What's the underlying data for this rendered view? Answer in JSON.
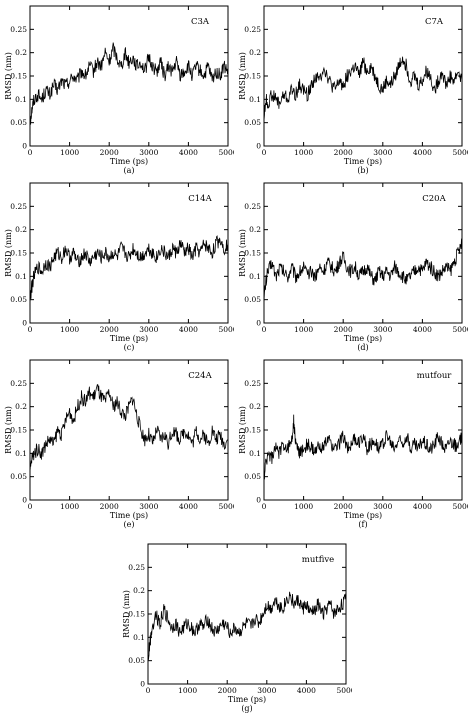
{
  "chart_data": [
    {
      "type": "line",
      "title": "C3A",
      "xlabel": "Time (ps)",
      "ylabel": "RMSD (nm)",
      "caption": "(a)",
      "xlim": [
        0,
        5000
      ],
      "ylim": [
        0,
        0.3
      ],
      "xticks": [
        0,
        1000,
        2000,
        3000,
        4000,
        5000
      ],
      "yticks": [
        0,
        0.05,
        0.1,
        0.15,
        0.2,
        0.25
      ],
      "yticklabels": [
        "0",
        "0.05",
        "0.1",
        "0.15",
        "0.2",
        "0.25"
      ],
      "grid": false,
      "color": "#000000",
      "series": [
        {
          "x": [
            0,
            50,
            100,
            200,
            300,
            400,
            500,
            600,
            700,
            800,
            900,
            1000,
            1100,
            1200,
            1300,
            1400,
            1500,
            1600,
            1700,
            1800,
            1900,
            2000,
            2100,
            2200,
            2300,
            2400,
            2500,
            2600,
            2700,
            2800,
            2900,
            3000,
            3100,
            3200,
            3300,
            3400,
            3500,
            3600,
            3700,
            3800,
            3900,
            4000,
            4100,
            4200,
            4300,
            4400,
            4500,
            4600,
            4700,
            4800,
            4900,
            5000
          ],
          "y": [
            0.05,
            0.08,
            0.1,
            0.11,
            0.1,
            0.12,
            0.11,
            0.13,
            0.12,
            0.14,
            0.13,
            0.14,
            0.15,
            0.14,
            0.16,
            0.15,
            0.17,
            0.16,
            0.18,
            0.17,
            0.2,
            0.18,
            0.21,
            0.19,
            0.17,
            0.2,
            0.18,
            0.19,
            0.17,
            0.18,
            0.16,
            0.19,
            0.17,
            0.16,
            0.18,
            0.15,
            0.17,
            0.16,
            0.18,
            0.15,
            0.16,
            0.17,
            0.15,
            0.17,
            0.16,
            0.15,
            0.17,
            0.14,
            0.16,
            0.15,
            0.17,
            0.16
          ]
        }
      ]
    },
    {
      "type": "line",
      "title": "C7A",
      "xlabel": "Time (ps)",
      "ylabel": "RMSD (nm)",
      "caption": "(b)",
      "xlim": [
        0,
        5000
      ],
      "ylim": [
        0,
        0.3
      ],
      "xticks": [
        0,
        1000,
        2000,
        3000,
        4000,
        5000
      ],
      "yticks": [
        0,
        0.05,
        0.1,
        0.15,
        0.2,
        0.25
      ],
      "yticklabels": [
        "0",
        "0.05",
        "0.1",
        "0.15",
        "0.2",
        "0.25"
      ],
      "grid": false,
      "color": "#000000",
      "series": [
        {
          "x": [
            0,
            50,
            100,
            200,
            300,
            400,
            500,
            600,
            700,
            800,
            900,
            1000,
            1100,
            1200,
            1300,
            1400,
            1500,
            1600,
            1700,
            1800,
            1900,
            2000,
            2100,
            2200,
            2300,
            2400,
            2500,
            2600,
            2700,
            2800,
            2900,
            3000,
            3100,
            3200,
            3300,
            3400,
            3500,
            3600,
            3700,
            3800,
            3900,
            4000,
            4100,
            4200,
            4300,
            4400,
            4500,
            4600,
            4700,
            4800,
            4900,
            5000
          ],
          "y": [
            0.06,
            0.1,
            0.09,
            0.11,
            0.1,
            0.09,
            0.11,
            0.1,
            0.12,
            0.11,
            0.13,
            0.12,
            0.11,
            0.13,
            0.15,
            0.14,
            0.17,
            0.15,
            0.13,
            0.12,
            0.14,
            0.13,
            0.15,
            0.16,
            0.17,
            0.15,
            0.18,
            0.16,
            0.17,
            0.15,
            0.13,
            0.12,
            0.14,
            0.13,
            0.15,
            0.17,
            0.19,
            0.17,
            0.14,
            0.15,
            0.13,
            0.14,
            0.16,
            0.15,
            0.12,
            0.14,
            0.16,
            0.13,
            0.15,
            0.14,
            0.16,
            0.14
          ]
        }
      ]
    },
    {
      "type": "line",
      "title": "C14A",
      "xlabel": "Time (ps)",
      "ylabel": "RMSD (nm)",
      "caption": "(c)",
      "xlim": [
        0,
        5000
      ],
      "ylim": [
        0,
        0.3
      ],
      "xticks": [
        0,
        1000,
        2000,
        3000,
        4000,
        5000
      ],
      "yticks": [
        0,
        0.05,
        0.1,
        0.15,
        0.2,
        0.25
      ],
      "yticklabels": [
        "0",
        "0.05",
        "0.1",
        "0.15",
        "0.2",
        "0.25"
      ],
      "grid": false,
      "color": "#000000",
      "series": [
        {
          "x": [
            0,
            50,
            100,
            200,
            300,
            400,
            500,
            600,
            700,
            800,
            900,
            1000,
            1100,
            1200,
            1300,
            1400,
            1500,
            1600,
            1700,
            1800,
            1900,
            2000,
            2100,
            2200,
            2300,
            2400,
            2500,
            2600,
            2700,
            2800,
            2900,
            3000,
            3100,
            3200,
            3300,
            3400,
            3500,
            3600,
            3700,
            3800,
            3900,
            4000,
            4100,
            4200,
            4300,
            4400,
            4500,
            4600,
            4700,
            4800,
            4900,
            5000
          ],
          "y": [
            0.05,
            0.08,
            0.1,
            0.12,
            0.11,
            0.13,
            0.12,
            0.14,
            0.15,
            0.14,
            0.16,
            0.14,
            0.15,
            0.13,
            0.14,
            0.15,
            0.13,
            0.14,
            0.15,
            0.14,
            0.15,
            0.14,
            0.15,
            0.14,
            0.16,
            0.15,
            0.14,
            0.16,
            0.15,
            0.14,
            0.15,
            0.16,
            0.15,
            0.14,
            0.16,
            0.15,
            0.14,
            0.16,
            0.15,
            0.17,
            0.15,
            0.16,
            0.14,
            0.16,
            0.15,
            0.17,
            0.16,
            0.15,
            0.17,
            0.18,
            0.16,
            0.17
          ]
        }
      ]
    },
    {
      "type": "line",
      "title": "C20A",
      "xlabel": "Time (ps)",
      "ylabel": "RMSD (nm)",
      "caption": "(d)",
      "xlim": [
        0,
        5000
      ],
      "ylim": [
        0,
        0.3
      ],
      "xticks": [
        0,
        1000,
        2000,
        3000,
        4000,
        5000
      ],
      "yticks": [
        0,
        0.05,
        0.1,
        0.15,
        0.2,
        0.25
      ],
      "yticklabels": [
        "0",
        "0.05",
        "0.1",
        "0.15",
        "0.2",
        "0.25"
      ],
      "grid": false,
      "color": "#000000",
      "series": [
        {
          "x": [
            0,
            50,
            100,
            200,
            300,
            400,
            500,
            600,
            700,
            800,
            900,
            1000,
            1100,
            1200,
            1300,
            1400,
            1500,
            1600,
            1700,
            1800,
            1900,
            2000,
            2100,
            2200,
            2300,
            2400,
            2500,
            2600,
            2700,
            2800,
            2900,
            3000,
            3100,
            3200,
            3300,
            3400,
            3500,
            3600,
            3700,
            3800,
            3900,
            4000,
            4100,
            4200,
            4300,
            4400,
            4500,
            4600,
            4700,
            4800,
            4900,
            5000
          ],
          "y": [
            0.05,
            0.09,
            0.11,
            0.13,
            0.1,
            0.12,
            0.11,
            0.1,
            0.12,
            0.1,
            0.11,
            0.12,
            0.1,
            0.11,
            0.1,
            0.12,
            0.11,
            0.13,
            0.12,
            0.11,
            0.13,
            0.14,
            0.12,
            0.11,
            0.12,
            0.1,
            0.11,
            0.12,
            0.1,
            0.09,
            0.11,
            0.1,
            0.11,
            0.1,
            0.12,
            0.11,
            0.1,
            0.09,
            0.1,
            0.11,
            0.12,
            0.11,
            0.13,
            0.12,
            0.11,
            0.1,
            0.11,
            0.12,
            0.11,
            0.13,
            0.15,
            0.17
          ]
        }
      ]
    },
    {
      "type": "line",
      "title": "C24A",
      "xlabel": "Time (ps)",
      "ylabel": "RMSD (nm)",
      "caption": "(e)",
      "xlim": [
        0,
        5000
      ],
      "ylim": [
        0,
        0.3
      ],
      "xticks": [
        0,
        1000,
        2000,
        3000,
        4000,
        5000
      ],
      "yticks": [
        0,
        0.05,
        0.1,
        0.15,
        0.2,
        0.25
      ],
      "yticklabels": [
        "0",
        "0.05",
        "0.1",
        "0.15",
        "0.2",
        "0.25"
      ],
      "grid": false,
      "color": "#000000",
      "series": [
        {
          "x": [
            0,
            50,
            100,
            200,
            300,
            400,
            500,
            600,
            700,
            800,
            900,
            1000,
            1100,
            1200,
            1300,
            1400,
            1500,
            1600,
            1700,
            1800,
            1900,
            2000,
            2100,
            2200,
            2300,
            2400,
            2500,
            2600,
            2700,
            2800,
            2900,
            3000,
            3100,
            3200,
            3300,
            3400,
            3500,
            3600,
            3700,
            3800,
            3900,
            4000,
            4100,
            4200,
            4300,
            4400,
            4500,
            4600,
            4700,
            4800,
            4900,
            5000
          ],
          "y": [
            0.06,
            0.09,
            0.1,
            0.11,
            0.1,
            0.12,
            0.13,
            0.12,
            0.15,
            0.14,
            0.17,
            0.19,
            0.17,
            0.2,
            0.22,
            0.21,
            0.23,
            0.22,
            0.24,
            0.22,
            0.21,
            0.23,
            0.2,
            0.21,
            0.19,
            0.18,
            0.2,
            0.22,
            0.18,
            0.15,
            0.13,
            0.14,
            0.12,
            0.15,
            0.13,
            0.14,
            0.12,
            0.15,
            0.14,
            0.13,
            0.15,
            0.14,
            0.12,
            0.15,
            0.13,
            0.14,
            0.12,
            0.15,
            0.13,
            0.14,
            0.12,
            0.13
          ]
        }
      ]
    },
    {
      "type": "line",
      "title": "mutfour",
      "xlabel": "Time (ps)",
      "ylabel": "RMSD (nm)",
      "caption": "(f)",
      "xlim": [
        0,
        5000
      ],
      "ylim": [
        0,
        0.3
      ],
      "xticks": [
        0,
        1000,
        2000,
        3000,
        4000,
        5000
      ],
      "yticks": [
        0,
        0.05,
        0.1,
        0.15,
        0.2,
        0.25
      ],
      "yticklabels": [
        "0",
        "0.05",
        "0.1",
        "0.15",
        "0.2",
        "0.25"
      ],
      "grid": false,
      "color": "#000000",
      "series": [
        {
          "x": [
            0,
            50,
            100,
            200,
            300,
            400,
            500,
            600,
            700,
            750,
            800,
            850,
            900,
            1000,
            1100,
            1200,
            1300,
            1400,
            1500,
            1600,
            1700,
            1800,
            1900,
            2000,
            2100,
            2200,
            2300,
            2400,
            2500,
            2600,
            2700,
            2800,
            2900,
            3000,
            3100,
            3200,
            3300,
            3400,
            3500,
            3600,
            3700,
            3800,
            3900,
            4000,
            4100,
            4200,
            4300,
            4400,
            4500,
            4600,
            4700,
            4800,
            4900,
            5000
          ],
          "y": [
            0.05,
            0.08,
            0.1,
            0.09,
            0.11,
            0.1,
            0.12,
            0.11,
            0.13,
            0.17,
            0.12,
            0.11,
            0.1,
            0.11,
            0.12,
            0.11,
            0.1,
            0.12,
            0.11,
            0.13,
            0.12,
            0.11,
            0.12,
            0.14,
            0.11,
            0.12,
            0.13,
            0.12,
            0.14,
            0.11,
            0.12,
            0.13,
            0.11,
            0.12,
            0.14,
            0.12,
            0.11,
            0.13,
            0.12,
            0.14,
            0.11,
            0.12,
            0.11,
            0.13,
            0.12,
            0.11,
            0.12,
            0.14,
            0.12,
            0.11,
            0.13,
            0.12,
            0.11,
            0.14
          ]
        }
      ]
    },
    {
      "type": "line",
      "title": "mutfive",
      "xlabel": "Time (ps)",
      "ylabel": "RMSD (nm)",
      "caption": "(g)",
      "xlim": [
        0,
        5000
      ],
      "ylim": [
        0,
        0.3
      ],
      "xticks": [
        0,
        1000,
        2000,
        3000,
        4000,
        5000
      ],
      "yticks": [
        0,
        0.05,
        0.1,
        0.15,
        0.2,
        0.25
      ],
      "yticklabels": [
        "0",
        "0.05",
        "0.1",
        "0.15",
        "0.2",
        "0.25"
      ],
      "grid": false,
      "color": "#000000",
      "series": [
        {
          "x": [
            0,
            50,
            100,
            200,
            300,
            400,
            500,
            600,
            700,
            800,
            900,
            1000,
            1100,
            1200,
            1300,
            1400,
            1500,
            1600,
            1700,
            1800,
            1900,
            2000,
            2100,
            2200,
            2300,
            2400,
            2500,
            2600,
            2700,
            2800,
            2900,
            3000,
            3100,
            3200,
            3300,
            3400,
            3500,
            3600,
            3700,
            3800,
            3900,
            4000,
            4100,
            4200,
            4300,
            4400,
            4500,
            4600,
            4700,
            4800,
            4900,
            5000
          ],
          "y": [
            0.05,
            0.09,
            0.12,
            0.15,
            0.13,
            0.16,
            0.14,
            0.12,
            0.13,
            0.11,
            0.12,
            0.13,
            0.12,
            0.11,
            0.13,
            0.12,
            0.14,
            0.12,
            0.11,
            0.12,
            0.13,
            0.12,
            0.11,
            0.12,
            0.11,
            0.12,
            0.13,
            0.12,
            0.14,
            0.13,
            0.15,
            0.17,
            0.16,
            0.18,
            0.17,
            0.16,
            0.18,
            0.19,
            0.17,
            0.18,
            0.16,
            0.17,
            0.15,
            0.16,
            0.17,
            0.15,
            0.16,
            0.17,
            0.15,
            0.16,
            0.17,
            0.18
          ]
        }
      ]
    }
  ]
}
